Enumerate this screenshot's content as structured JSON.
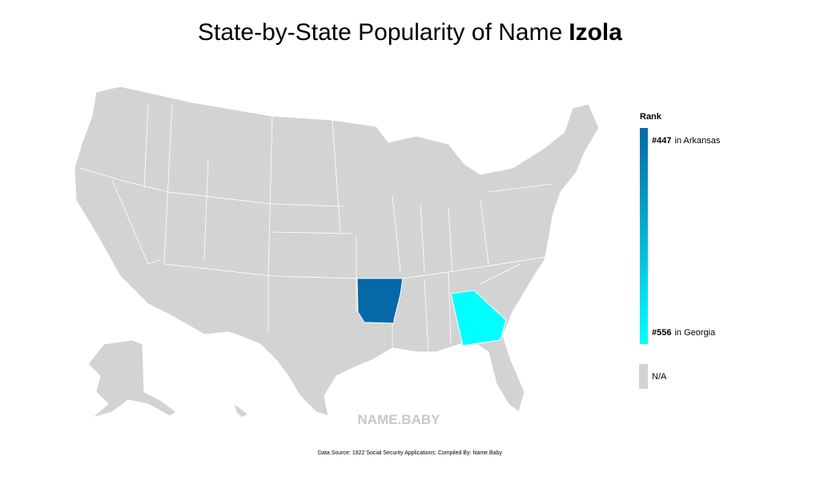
{
  "title": {
    "prefix": "State-by-State Popularity of Name",
    "name": "Izola"
  },
  "legend": {
    "title": "Rank",
    "top": {
      "rank": "#447",
      "label": "in Arkansas"
    },
    "bottom": {
      "rank": "#556",
      "label": "in Georgia"
    },
    "na": "N/A",
    "na_color": "#d3d3d3"
  },
  "states": [
    {
      "name": "Arkansas",
      "color": "#0569a8"
    },
    {
      "name": "Georgia",
      "color": "#00ffff"
    }
  ],
  "watermark": "NAME.BABY",
  "footnote": "Data Source: 1922 Social Security Applications; Compiled By: Name.Baby"
}
